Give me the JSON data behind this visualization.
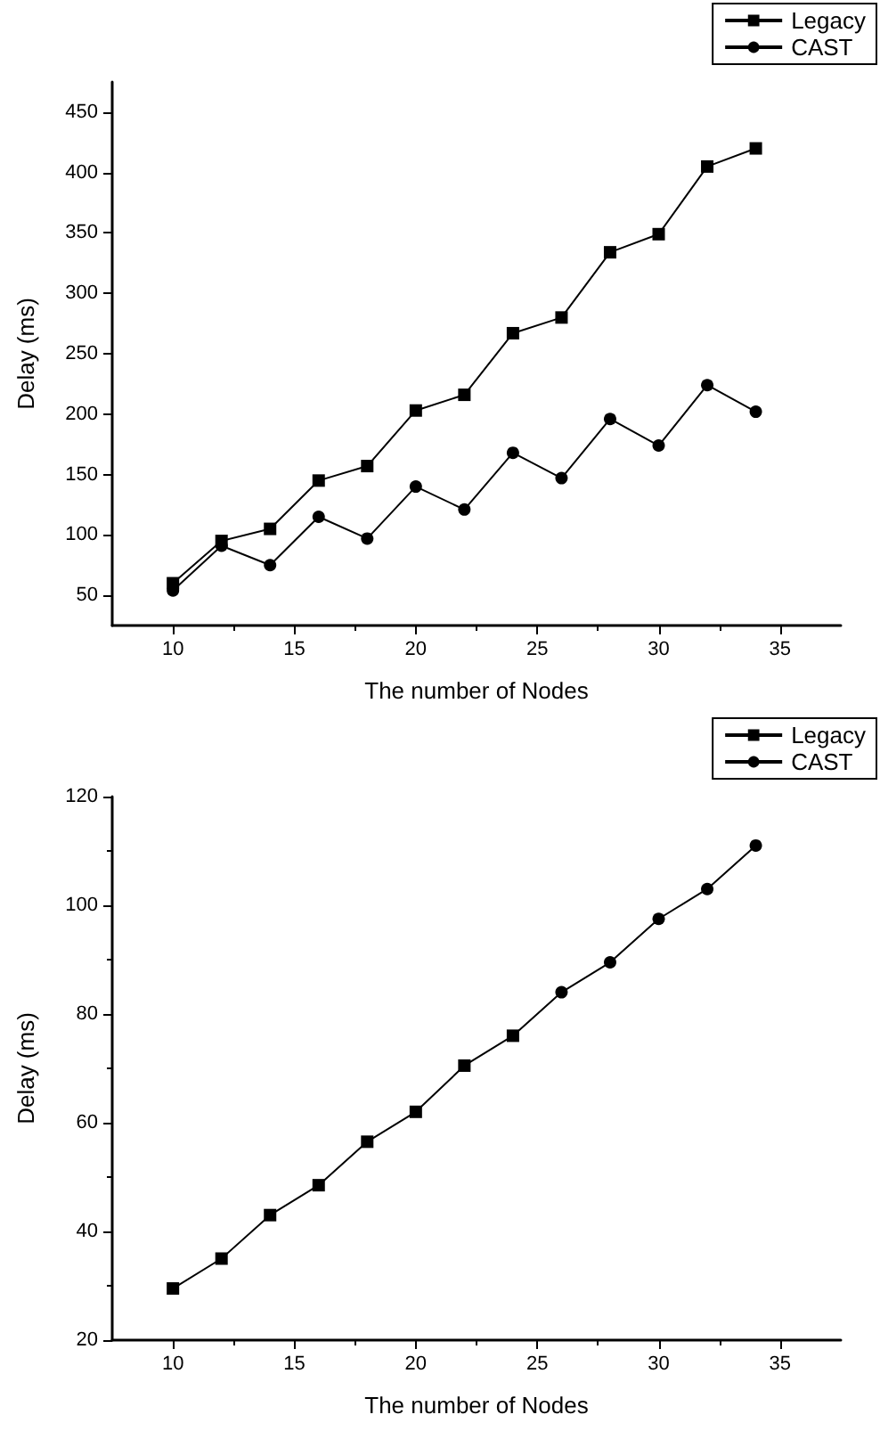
{
  "chart_data": [
    {
      "type": "line",
      "xlabel": "The number of Nodes",
      "ylabel": "Delay (ms)",
      "x": [
        10,
        12,
        14,
        16,
        18,
        20,
        22,
        24,
        26,
        28,
        30,
        32,
        34
      ],
      "series": [
        {
          "name": "Legacy",
          "color": "#000000",
          "marker": "square",
          "values": [
            60,
            95,
            105,
            145,
            157,
            203,
            216,
            267,
            280,
            334,
            349,
            405,
            420
          ]
        },
        {
          "name": "CAST",
          "color": "#000000",
          "marker": "circle",
          "values": [
            54,
            91,
            75,
            115,
            97,
            140,
            121,
            168,
            147,
            196,
            174,
            224,
            202
          ]
        }
      ],
      "xlim": [
        7.5,
        37.5
      ],
      "xticks": [
        10,
        15,
        20,
        25,
        30,
        35
      ],
      "ylim": [
        25,
        475
      ],
      "yticks": [
        50,
        100,
        150,
        200,
        250,
        300,
        350,
        400,
        450
      ],
      "grid": false,
      "legend": "top right"
    },
    {
      "type": "line",
      "xlabel": "The number of Nodes",
      "ylabel": "Delay (ms)",
      "x": [
        10,
        12,
        14,
        16,
        18,
        20,
        22,
        24,
        26,
        28,
        30,
        32,
        34
      ],
      "series": [
        {
          "name": "Legacy",
          "color": "#000000",
          "marker": "square",
          "values": [
            29.5,
            35,
            43,
            48.5,
            56.5,
            62,
            70.5,
            76,
            null,
            null,
            null,
            null,
            null
          ]
        },
        {
          "name": "CAST",
          "color": "#000000",
          "marker": "circle",
          "values": [
            null,
            null,
            null,
            null,
            null,
            null,
            null,
            76,
            84,
            89.5,
            97.5,
            103,
            111
          ]
        }
      ],
      "xlim": [
        7.5,
        37.5
      ],
      "xticks": [
        10,
        15,
        20,
        25,
        30,
        35
      ],
      "ylim": [
        20,
        120
      ],
      "yticks": [
        20,
        40,
        60,
        80,
        100,
        120
      ],
      "grid": false,
      "legend": "top right"
    }
  ]
}
